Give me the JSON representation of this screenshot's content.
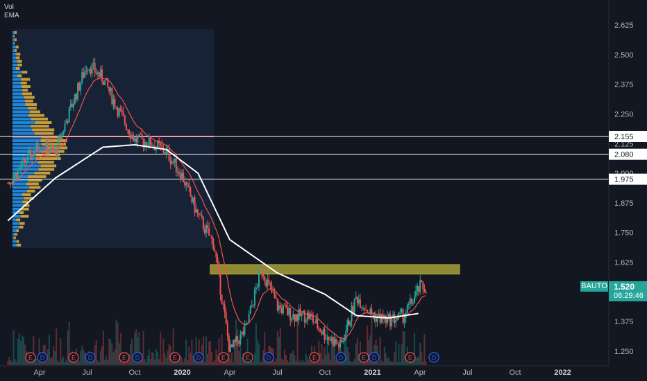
{
  "legend": {
    "line1": "Vol",
    "line2": "EMA"
  },
  "ticker": "BAUTO",
  "last_price": "1.520",
  "countdown": "06:29:46",
  "colors": {
    "background": "#131722",
    "up": "#26a69a",
    "down": "#ef5350",
    "ema_fast": "#ef5350",
    "ema_slow": "#ffffff",
    "zone": "#b7b23a",
    "vp_up": "#2196f3",
    "vp_down": "#e6b23c",
    "poc": "#f23645"
  },
  "chart_data": {
    "type": "candlestick",
    "y_axis": {
      "range": [
        1.2,
        2.69
      ],
      "ticks": [
        "2.625",
        "2.500",
        "2.375",
        "2.250",
        "2.125",
        "2.000",
        "1.875",
        "1.750",
        "1.625",
        "1.375",
        "1.250"
      ]
    },
    "x_axis": {
      "labels": [
        "Apr",
        "Jul",
        "Oct",
        "2020",
        "Apr",
        "Jul",
        "Oct",
        "2021",
        "Apr",
        "Jul",
        "Oct",
        "2022"
      ]
    },
    "horizontal_lines": [
      {
        "value": 2.155,
        "label": "2.155"
      },
      {
        "value": 2.08,
        "label": "2.080"
      },
      {
        "value": 1.975,
        "label": "1.975"
      }
    ],
    "resistance_zone": {
      "from": 1.575,
      "to": 1.615
    },
    "price_path": [
      {
        "date": "2019-02",
        "price": 1.96
      },
      {
        "date": "2019-03",
        "price": 2.04
      },
      {
        "date": "2019-04",
        "price": 2.12
      },
      {
        "date": "2019-05",
        "price": 2.09
      },
      {
        "date": "2019-06",
        "price": 2.28
      },
      {
        "date": "2019-07",
        "price": 2.46
      },
      {
        "date": "2019-08",
        "price": 2.4
      },
      {
        "date": "2019-09",
        "price": 2.26
      },
      {
        "date": "2019-10",
        "price": 2.14
      },
      {
        "date": "2019-11",
        "price": 2.13
      },
      {
        "date": "2019-12",
        "price": 2.09
      },
      {
        "date": "2020-01",
        "price": 1.99
      },
      {
        "date": "2020-02",
        "price": 1.82
      },
      {
        "date": "2020-03",
        "price": 1.7
      },
      {
        "date": "2020-04",
        "price": 1.25
      },
      {
        "date": "2020-05",
        "price": 1.34
      },
      {
        "date": "2020-06",
        "price": 1.6
      },
      {
        "date": "2020-07",
        "price": 1.44
      },
      {
        "date": "2020-08",
        "price": 1.4
      },
      {
        "date": "2020-09",
        "price": 1.4
      },
      {
        "date": "2020-10",
        "price": 1.32
      },
      {
        "date": "2020-11",
        "price": 1.27
      },
      {
        "date": "2020-12",
        "price": 1.48
      },
      {
        "date": "2021-01",
        "price": 1.4
      },
      {
        "date": "2021-02",
        "price": 1.38
      },
      {
        "date": "2021-03",
        "price": 1.4
      },
      {
        "date": "2021-04",
        "price": 1.52
      }
    ],
    "ema_slow_path": [
      {
        "date": "2019-02",
        "price": 1.8
      },
      {
        "date": "2019-05",
        "price": 1.98
      },
      {
        "date": "2019-08",
        "price": 2.11
      },
      {
        "date": "2019-10",
        "price": 2.12
      },
      {
        "date": "2019-12",
        "price": 2.1
      },
      {
        "date": "2020-02",
        "price": 2.0
      },
      {
        "date": "2020-04",
        "price": 1.72
      },
      {
        "date": "2020-07",
        "price": 1.58
      },
      {
        "date": "2020-10",
        "price": 1.49
      },
      {
        "date": "2020-12",
        "price": 1.4
      },
      {
        "date": "2021-02",
        "price": 1.39
      },
      {
        "date": "2021-04",
        "price": 1.41
      }
    ],
    "events": [
      "E",
      "D",
      "E",
      "D",
      "E",
      "D",
      "E",
      "D",
      "E",
      "E",
      "D",
      "E",
      "D",
      "E",
      "D",
      "E",
      "D"
    ]
  }
}
